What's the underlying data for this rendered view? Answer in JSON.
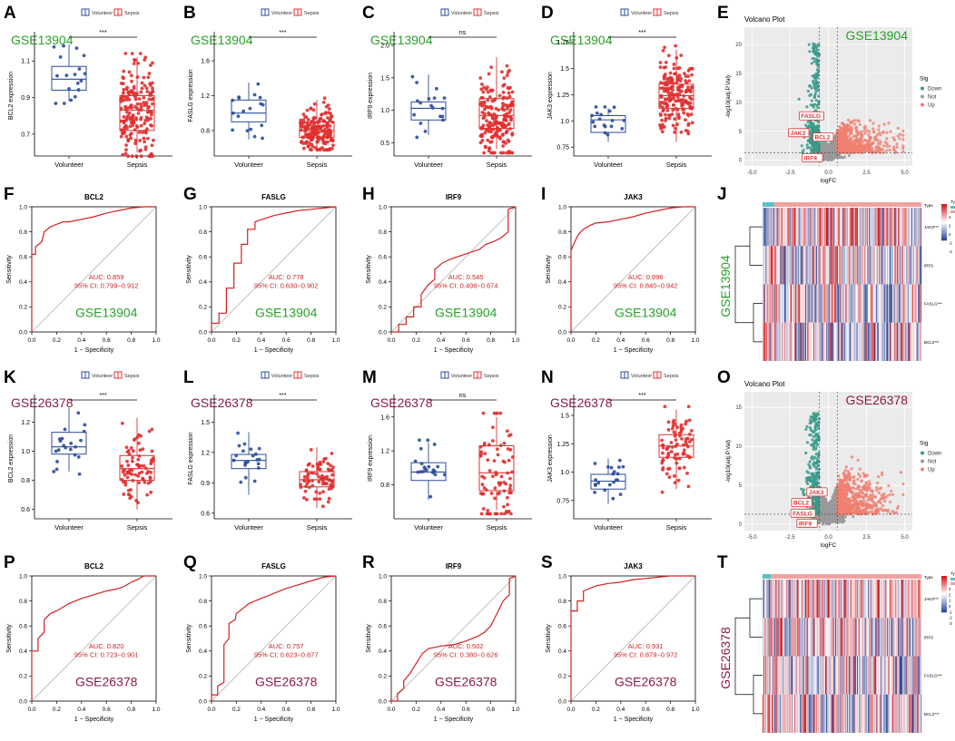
{
  "figure": {
    "panel_letters": [
      "A",
      "B",
      "C",
      "D",
      "E",
      "F",
      "G",
      "H",
      "I",
      "J",
      "K",
      "L",
      "M",
      "N",
      "O",
      "P",
      "Q",
      "R",
      "S",
      "T"
    ],
    "colors": {
      "volunteer": "#2b4c9b",
      "sepsis": "#e03030",
      "gse13904": "#2aa02b",
      "gse26378": "#8b1a4a",
      "roc": "#d42020",
      "auc_text": "#d42020",
      "down": "#3a9a8a",
      "up": "#f08070",
      "not": "#9a9a9a",
      "heat_high": "#d7191c",
      "heat_low": "#2c4a9a"
    }
  },
  "chart_data": [
    {
      "panel": "A",
      "type": "box",
      "dataset": "GSE13904",
      "gene": "BCL2",
      "ylabel": "BCL2 expression",
      "categories": [
        "Volunteer",
        "Sepsis"
      ],
      "legend": [
        "Volunteer",
        "Sepsis"
      ],
      "significance": "***",
      "yticks": [
        0.7,
        0.9,
        1.1
      ],
      "ylim": [
        0.6,
        1.22
      ],
      "series": [
        {
          "name": "Volunteer",
          "min": 0.88,
          "q1": 0.94,
          "median": 1.0,
          "q3": 1.07,
          "max": 1.19,
          "n": 18
        },
        {
          "name": "Sepsis",
          "min": 0.6,
          "q1": 0.72,
          "median": 0.83,
          "q3": 0.91,
          "max": 1.12,
          "n": 190
        }
      ]
    },
    {
      "panel": "B",
      "type": "box",
      "dataset": "GSE13904",
      "gene": "FASLG",
      "ylabel": "FASLG expression",
      "categories": [
        "Volunteer",
        "Sepsis"
      ],
      "legend": [
        "Volunteer",
        "Sepsis"
      ],
      "significance": "***",
      "yticks": [
        0.8,
        1.2,
        1.6
      ],
      "ylim": [
        0.55,
        1.85
      ],
      "series": [
        {
          "name": "Volunteer",
          "min": 0.7,
          "q1": 0.9,
          "median": 1.0,
          "q3": 1.15,
          "max": 1.35,
          "n": 18
        },
        {
          "name": "Sepsis",
          "min": 0.6,
          "q1": 0.72,
          "median": 0.8,
          "q3": 0.9,
          "max": 1.15,
          "n": 190
        }
      ]
    },
    {
      "panel": "C",
      "type": "box",
      "dataset": "GSE13904",
      "gene": "IRF9",
      "ylabel": "IRF9 expression",
      "categories": [
        "Volunteer",
        "Sepsis"
      ],
      "legend": [
        "Volunteer",
        "Sepsis"
      ],
      "significance": "ns",
      "yticks": [
        0.5,
        1.0,
        1.5,
        2.0
      ],
      "ylim": [
        0.35,
        2.1
      ],
      "series": [
        {
          "name": "Volunteer",
          "min": 0.62,
          "q1": 0.85,
          "median": 1.03,
          "q3": 1.13,
          "max": 1.55,
          "n": 18
        },
        {
          "name": "Sepsis",
          "min": 0.4,
          "q1": 0.72,
          "median": 0.92,
          "q3": 1.18,
          "max": 1.82,
          "n": 190
        }
      ]
    },
    {
      "panel": "D",
      "type": "box",
      "dataset": "GSE13904",
      "gene": "JAK3",
      "ylabel": "JAK3 expression",
      "categories": [
        "Volunteer",
        "Sepsis"
      ],
      "legend": [
        "Volunteer",
        "Sepsis"
      ],
      "significance": "***",
      "yticks": [
        0.75,
        1.0,
        1.25,
        1.5,
        1.75
      ],
      "ylim": [
        0.7,
        1.78
      ],
      "series": [
        {
          "name": "Volunteer",
          "min": 0.8,
          "q1": 0.89,
          "median": 1.01,
          "q3": 1.05,
          "max": 1.12,
          "n": 18
        },
        {
          "name": "Sepsis",
          "min": 0.8,
          "q1": 1.12,
          "median": 1.24,
          "q3": 1.35,
          "max": 1.68,
          "n": 190
        }
      ]
    },
    {
      "panel": "E",
      "type": "scatter",
      "title": "Volcano Plot",
      "dataset": "GSE13904",
      "xlabel": "logFC",
      "ylabel": "-log10(adj.P.Val)",
      "xticks": [
        -5.0,
        -2.5,
        0.0,
        2.5,
        5.0
      ],
      "yticks": [
        0,
        5,
        10,
        15,
        20
      ],
      "xlim": [
        -5.5,
        5.5
      ],
      "ylim": [
        -1,
        23
      ],
      "legend_title": "Sig",
      "legend": [
        "Down",
        "Not",
        "Up"
      ],
      "labels": [
        "FASLG",
        "JAK3",
        "BCL2",
        "IRF9"
      ]
    },
    {
      "panel": "F",
      "type": "line",
      "dataset": "GSE13904",
      "title": "BCL2",
      "auc_text": "AUC: 0.859",
      "ci_text": "95% CI: 0.799−0.912",
      "xlabel": "1 − Specificity",
      "ylabel": "Sensitivity",
      "ticks": [
        0.0,
        0.2,
        0.4,
        0.6,
        0.8,
        1.0
      ],
      "x": [
        0,
        0,
        0.03,
        0.03,
        0.08,
        0.1,
        0.15,
        0.2,
        0.25,
        0.3,
        0.4,
        0.5,
        0.6,
        0.7,
        0.8,
        0.9,
        1.0
      ],
      "y": [
        0,
        0.62,
        0.62,
        0.68,
        0.72,
        0.8,
        0.84,
        0.86,
        0.88,
        0.88,
        0.9,
        0.92,
        0.95,
        0.97,
        0.99,
        1.0,
        1.0
      ]
    },
    {
      "panel": "G",
      "type": "line",
      "dataset": "GSE13904",
      "title": "FASLG",
      "auc_text": "AUC: 0.778",
      "ci_text": "95% CI: 0.630−0.902",
      "xlabel": "1 − Specificity",
      "ylabel": "Sensitivity",
      "ticks": [
        0.0,
        0.2,
        0.4,
        0.6,
        0.8,
        1.0
      ],
      "x": [
        0,
        0,
        0.06,
        0.06,
        0.12,
        0.12,
        0.18,
        0.18,
        0.24,
        0.24,
        0.29,
        0.29,
        0.35,
        0.35,
        0.41,
        0.5,
        0.6,
        0.7,
        0.8,
        0.9,
        1.0
      ],
      "y": [
        0,
        0.07,
        0.07,
        0.15,
        0.15,
        0.35,
        0.35,
        0.55,
        0.55,
        0.7,
        0.7,
        0.82,
        0.82,
        0.88,
        0.9,
        0.93,
        0.95,
        0.97,
        0.98,
        0.99,
        1.0
      ]
    },
    {
      "panel": "H",
      "type": "line",
      "dataset": "GSE13904",
      "title": "IRF9",
      "auc_text": "AUC: 0.545",
      "ci_text": "95% CI: 0.408−0.674",
      "xlabel": "1 − Specificity",
      "ylabel": "Sensitivity",
      "ticks": [
        0.0,
        0.2,
        0.4,
        0.6,
        0.8,
        1.0
      ],
      "x": [
        0,
        0.06,
        0.06,
        0.12,
        0.12,
        0.18,
        0.18,
        0.24,
        0.24,
        0.3,
        0.35,
        0.35,
        0.41,
        0.47,
        0.53,
        0.59,
        0.65,
        0.71,
        0.76,
        0.82,
        0.88,
        0.94,
        0.94,
        1.0
      ],
      "y": [
        0,
        0,
        0.06,
        0.06,
        0.12,
        0.12,
        0.2,
        0.2,
        0.3,
        0.38,
        0.42,
        0.5,
        0.55,
        0.58,
        0.6,
        0.62,
        0.64,
        0.66,
        0.7,
        0.72,
        0.75,
        0.8,
        0.98,
        1.0
      ]
    },
    {
      "panel": "I",
      "type": "line",
      "dataset": "GSE13904",
      "title": "JAK3",
      "auc_text": "AUC: 0.896",
      "ci_text": "95% CI: 0.840−0.942",
      "xlabel": "1 − Specificity",
      "ylabel": "Sensitivity",
      "ticks": [
        0.0,
        0.2,
        0.4,
        0.6,
        0.8,
        1.0
      ],
      "x": [
        0,
        0,
        0.03,
        0.06,
        0.1,
        0.15,
        0.2,
        0.3,
        0.4,
        0.5,
        0.6,
        0.7,
        0.8,
        0.9,
        1.0
      ],
      "y": [
        0,
        0.65,
        0.72,
        0.78,
        0.82,
        0.85,
        0.87,
        0.88,
        0.9,
        0.92,
        0.95,
        0.97,
        0.99,
        1.0,
        1.0
      ]
    },
    {
      "panel": "J",
      "type": "heatmap",
      "dataset": "GSE13904",
      "rows": [
        "JAK3***",
        "IRF9",
        "FASLG***",
        "BCL2***"
      ],
      "legend_title": "Type",
      "legend": [
        "Volunteer",
        "Sepsis"
      ],
      "scale_ticks": [
        4,
        2,
        0,
        -2,
        -4
      ]
    },
    {
      "panel": "K",
      "type": "box",
      "dataset": "GSE26378",
      "gene": "BCL2",
      "ylabel": "BCL2 expression",
      "categories": [
        "Volunteer",
        "Sepsis"
      ],
      "legend": [
        "Volunteer",
        "Sepsis"
      ],
      "significance": "***",
      "yticks": [
        0.6,
        0.8,
        1.0,
        1.2
      ],
      "ylim": [
        0.56,
        1.34
      ],
      "series": [
        {
          "name": "Volunteer",
          "min": 0.86,
          "q1": 0.98,
          "median": 1.03,
          "q3": 1.13,
          "max": 1.3,
          "n": 21
        },
        {
          "name": "Sepsis",
          "min": 0.6,
          "q1": 0.8,
          "median": 0.88,
          "q3": 0.97,
          "max": 1.23,
          "n": 82
        }
      ]
    },
    {
      "panel": "L",
      "type": "box",
      "dataset": "GSE26378",
      "gene": "FASLG",
      "ylabel": "FASLG expression",
      "categories": [
        "Volunteer",
        "Sepsis"
      ],
      "legend": [
        "Volunteer",
        "Sepsis"
      ],
      "significance": "***",
      "yticks": [
        0.6,
        0.9,
        1.2,
        1.5
      ],
      "ylim": [
        0.58,
        1.7
      ],
      "series": [
        {
          "name": "Volunteer",
          "min": 0.78,
          "q1": 1.04,
          "median": 1.12,
          "q3": 1.18,
          "max": 1.4,
          "n": 21
        },
        {
          "name": "Sepsis",
          "min": 0.65,
          "q1": 0.86,
          "median": 0.93,
          "q3": 1.01,
          "max": 1.25,
          "n": 82
        }
      ]
    },
    {
      "panel": "M",
      "type": "box",
      "dataset": "GSE26378",
      "gene": "IRF9",
      "ylabel": "IRF9 expression",
      "categories": [
        "Volunteer",
        "Sepsis"
      ],
      "legend": [
        "Volunteer",
        "Sepsis"
      ],
      "significance": "ns",
      "yticks": [
        0.8,
        1.2,
        1.6
      ],
      "ylim": [
        0.44,
        1.78
      ],
      "series": [
        {
          "name": "Volunteer",
          "min": 0.62,
          "q1": 0.85,
          "median": 0.95,
          "q3": 1.06,
          "max": 1.3,
          "n": 21
        },
        {
          "name": "Sepsis",
          "min": 0.5,
          "q1": 0.73,
          "median": 0.94,
          "q3": 1.26,
          "max": 1.6,
          "n": 82
        }
      ]
    },
    {
      "panel": "N",
      "type": "box",
      "dataset": "GSE26378",
      "gene": "JAK3",
      "ylabel": "JAK3 expression",
      "categories": [
        "Volunteer",
        "Sepsis"
      ],
      "legend": [
        "Volunteer",
        "Sepsis"
      ],
      "significance": "***",
      "yticks": [
        0.75,
        1.0,
        1.25,
        1.5
      ],
      "ylim": [
        0.62,
        1.62
      ],
      "series": [
        {
          "name": "Volunteer",
          "min": 0.72,
          "q1": 0.85,
          "median": 0.92,
          "q3": 0.98,
          "max": 1.12,
          "n": 21
        },
        {
          "name": "Sepsis",
          "min": 0.85,
          "q1": 1.13,
          "median": 1.23,
          "q3": 1.33,
          "max": 1.55,
          "n": 82
        }
      ]
    },
    {
      "panel": "O",
      "type": "scatter",
      "title": "Volcano Plot",
      "dataset": "GSE26378",
      "xlabel": "logFC",
      "ylabel": "-log10(adj.P.Val)",
      "xticks": [
        -5.0,
        -2.5,
        0.0,
        2.5,
        5.0
      ],
      "yticks": [
        0,
        5,
        10,
        15
      ],
      "xlim": [
        -5.5,
        5.5
      ],
      "ylim": [
        -0.8,
        17
      ],
      "legend_title": "Sig",
      "legend": [
        "Down",
        "Not",
        "Up"
      ],
      "labels": [
        "JAK3",
        "BCL2",
        "FASLG",
        "IRF9"
      ]
    },
    {
      "panel": "P",
      "type": "line",
      "dataset": "GSE26378",
      "title": "BCL2",
      "auc_text": "AUC: 0.820",
      "ci_text": "95% CI: 0.723−0.901",
      "xlabel": "1 − Specificity",
      "ylabel": "Sensitivity",
      "ticks": [
        0.0,
        0.2,
        0.4,
        0.6,
        0.8,
        1.0
      ],
      "x": [
        0,
        0,
        0.05,
        0.05,
        0.1,
        0.1,
        0.15,
        0.2,
        0.25,
        0.3,
        0.4,
        0.5,
        0.6,
        0.7,
        0.75,
        0.8,
        0.85,
        0.9,
        1.0
      ],
      "y": [
        0,
        0.4,
        0.4,
        0.5,
        0.55,
        0.65,
        0.7,
        0.72,
        0.75,
        0.78,
        0.82,
        0.85,
        0.88,
        0.9,
        0.92,
        0.95,
        0.97,
        1.0,
        1.0
      ]
    },
    {
      "panel": "Q",
      "type": "line",
      "dataset": "GSE26378",
      "title": "FASLG",
      "auc_text": "AUC: 0.757",
      "ci_text": "95% CI: 0.623−0.877",
      "xlabel": "1 − Specificity",
      "ylabel": "Sensitivity",
      "ticks": [
        0.0,
        0.2,
        0.4,
        0.6,
        0.8,
        1.0
      ],
      "x": [
        0,
        0,
        0.05,
        0.05,
        0.1,
        0.1,
        0.14,
        0.14,
        0.19,
        0.2,
        0.24,
        0.3,
        0.4,
        0.5,
        0.6,
        0.7,
        0.8,
        0.9,
        1.0
      ],
      "y": [
        0,
        0.05,
        0.05,
        0.12,
        0.15,
        0.45,
        0.5,
        0.62,
        0.65,
        0.7,
        0.73,
        0.78,
        0.82,
        0.86,
        0.9,
        0.93,
        0.96,
        0.99,
        1.0
      ]
    },
    {
      "panel": "R",
      "type": "line",
      "dataset": "GSE26378",
      "title": "IRF9",
      "auc_text": "AUC: 0.502",
      "ci_text": "95% CI: 0.380−0.626",
      "xlabel": "1 − Specificity",
      "ylabel": "Sensitivity",
      "ticks": [
        0.0,
        0.2,
        0.4,
        0.6,
        0.8,
        1.0
      ],
      "x": [
        0,
        0.05,
        0.05,
        0.1,
        0.1,
        0.15,
        0.2,
        0.25,
        0.3,
        0.4,
        0.5,
        0.6,
        0.7,
        0.75,
        0.8,
        0.85,
        0.9,
        0.95,
        0.95,
        1.0
      ],
      "y": [
        0,
        0,
        0.06,
        0.1,
        0.16,
        0.22,
        0.3,
        0.38,
        0.42,
        0.44,
        0.45,
        0.48,
        0.52,
        0.55,
        0.6,
        0.7,
        0.8,
        0.85,
        0.98,
        1.0
      ]
    },
    {
      "panel": "S",
      "type": "line",
      "dataset": "GSE26378",
      "title": "JAK3",
      "auc_text": "AUC: 0.931",
      "ci_text": "95% CI: 0.879−0.972",
      "xlabel": "1 − Specificity",
      "ylabel": "Sensitivity",
      "ticks": [
        0.0,
        0.2,
        0.4,
        0.6,
        0.8,
        1.0
      ],
      "x": [
        0,
        0,
        0.05,
        0.05,
        0.1,
        0.1,
        0.15,
        0.2,
        0.3,
        0.4,
        0.5,
        0.6,
        0.7,
        0.8,
        0.9,
        1.0
      ],
      "y": [
        0,
        0.72,
        0.72,
        0.8,
        0.8,
        0.88,
        0.9,
        0.92,
        0.94,
        0.95,
        0.97,
        0.98,
        0.99,
        1.0,
        1.0,
        1.0
      ]
    },
    {
      "panel": "T",
      "type": "heatmap",
      "dataset": "GSE26378",
      "rows": [
        "JAK3***",
        "IRF9",
        "FASLG***",
        "BCL2***"
      ],
      "legend_title": "Type",
      "legend": [
        "Volunteer",
        "Sepsis"
      ],
      "scale_ticks": [
        3,
        2,
        1,
        0,
        -1,
        -2,
        -3
      ]
    }
  ]
}
